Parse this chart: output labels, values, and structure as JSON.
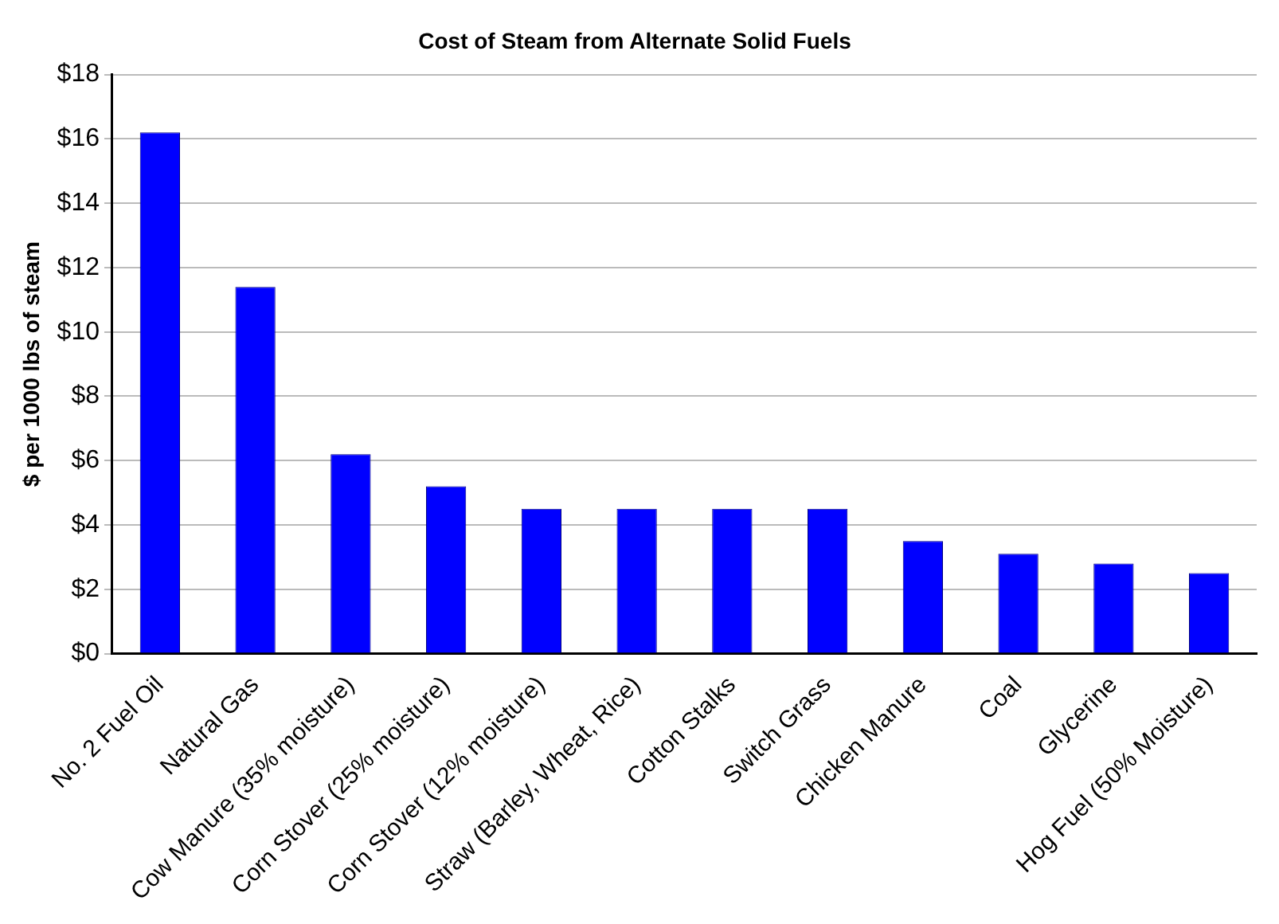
{
  "chart_data": {
    "type": "bar",
    "title": "Cost of Steam from Alternate Solid Fuels",
    "ylabel": "$ per 1000 lbs of steam",
    "categories": [
      "No. 2 Fuel Oil",
      "Natural Gas",
      "Cow Manure (35% moisture)",
      "Corn Stover (25% moisture)",
      "Corn Stover (12% moisture)",
      "Straw (Barley, Wheat, Rice)",
      "Cotton Stalks",
      "Switch Grass",
      "Chicken Manure",
      "Coal",
      "Glycerine",
      "Hog Fuel (50% Moisture)"
    ],
    "values": [
      16.2,
      11.4,
      6.2,
      5.2,
      4.5,
      4.5,
      4.5,
      4.5,
      3.5,
      3.1,
      2.8,
      2.5
    ],
    "color": "#0000ff",
    "ylim": [
      0,
      18
    ],
    "yticks": [
      {
        "value": 0,
        "label": "$0"
      },
      {
        "value": 2,
        "label": "$2"
      },
      {
        "value": 4,
        "label": "$4"
      },
      {
        "value": 6,
        "label": "$6"
      },
      {
        "value": 8,
        "label": "$8"
      },
      {
        "value": 10,
        "label": "$10"
      },
      {
        "value": 12,
        "label": "$12"
      },
      {
        "value": 14,
        "label": "$14"
      },
      {
        "value": 16,
        "label": "$16"
      },
      {
        "value": 18,
        "label": "$18"
      }
    ],
    "grid": "y",
    "legend": false
  }
}
